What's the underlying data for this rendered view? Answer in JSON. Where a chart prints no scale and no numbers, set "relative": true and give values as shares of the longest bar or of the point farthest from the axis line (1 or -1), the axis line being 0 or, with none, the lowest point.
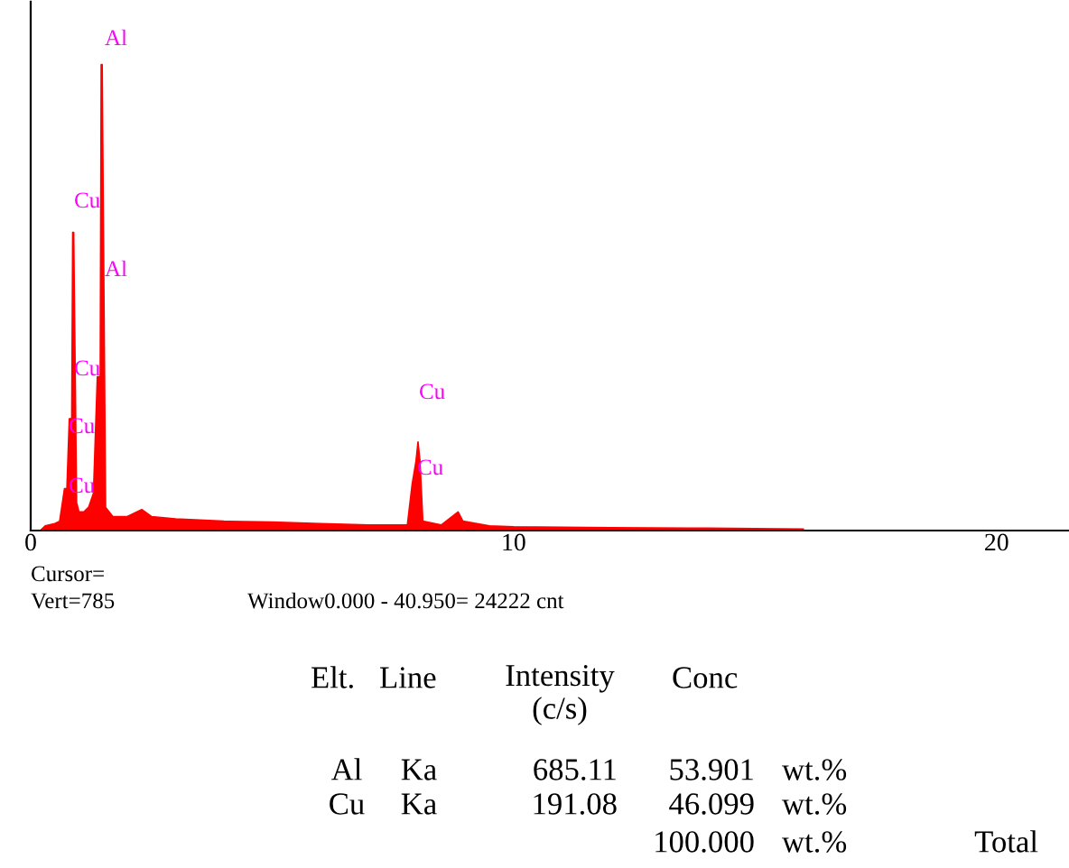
{
  "chart_data": {
    "type": "area",
    "relative": true,
    "color": "#ff0000",
    "tick_labels": "x",
    "grid": false,
    "x": [
      0.2,
      0.3,
      0.5,
      0.6,
      0.7,
      0.75,
      0.8,
      0.85,
      0.87,
      0.89,
      0.95,
      1.0,
      1.1,
      1.2,
      1.3,
      1.38,
      1.44,
      1.46,
      1.48,
      1.55,
      1.7,
      2.0,
      2.3,
      2.5,
      3,
      4,
      5,
      6,
      7,
      7.8,
      7.9,
      7.98,
      8.02,
      8.06,
      8.12,
      8.5,
      8.85,
      8.95,
      9.5,
      10,
      12,
      14,
      16
    ],
    "values": [
      0,
      0.01,
      0.015,
      0.02,
      0.09,
      0.09,
      0.24,
      0.24,
      0.64,
      0.64,
      0.06,
      0.04,
      0.04,
      0.05,
      0.08,
      0.33,
      0.33,
      1.0,
      1.0,
      0.05,
      0.03,
      0.03,
      0.045,
      0.03,
      0.025,
      0.02,
      0.018,
      0.015,
      0.012,
      0.012,
      0.1,
      0.15,
      0.19,
      0.15,
      0.02,
      0.012,
      0.04,
      0.02,
      0.01,
      0.008,
      0.006,
      0.005,
      0.003
    ],
    "xlim": [
      0,
      21.5
    ],
    "xticks": [
      0,
      10,
      20
    ],
    "annotations": [
      "Al",
      "Cu",
      "Al",
      "Cu",
      "Cu",
      "Cu",
      "Cu",
      "Cu",
      "Cursor=",
      "Vert=785",
      "Window0.000 - 40.950= 24222 cnt",
      "Elt.",
      "Line",
      "Intensity\n(c/s)",
      "Conc",
      "Al",
      "Ka",
      "685.11",
      "53.901",
      "wt.%",
      "Cu",
      "Ka",
      "191.08",
      "46.099",
      "wt.%",
      "100.000",
      "wt.%",
      "Total"
    ]
  }
}
